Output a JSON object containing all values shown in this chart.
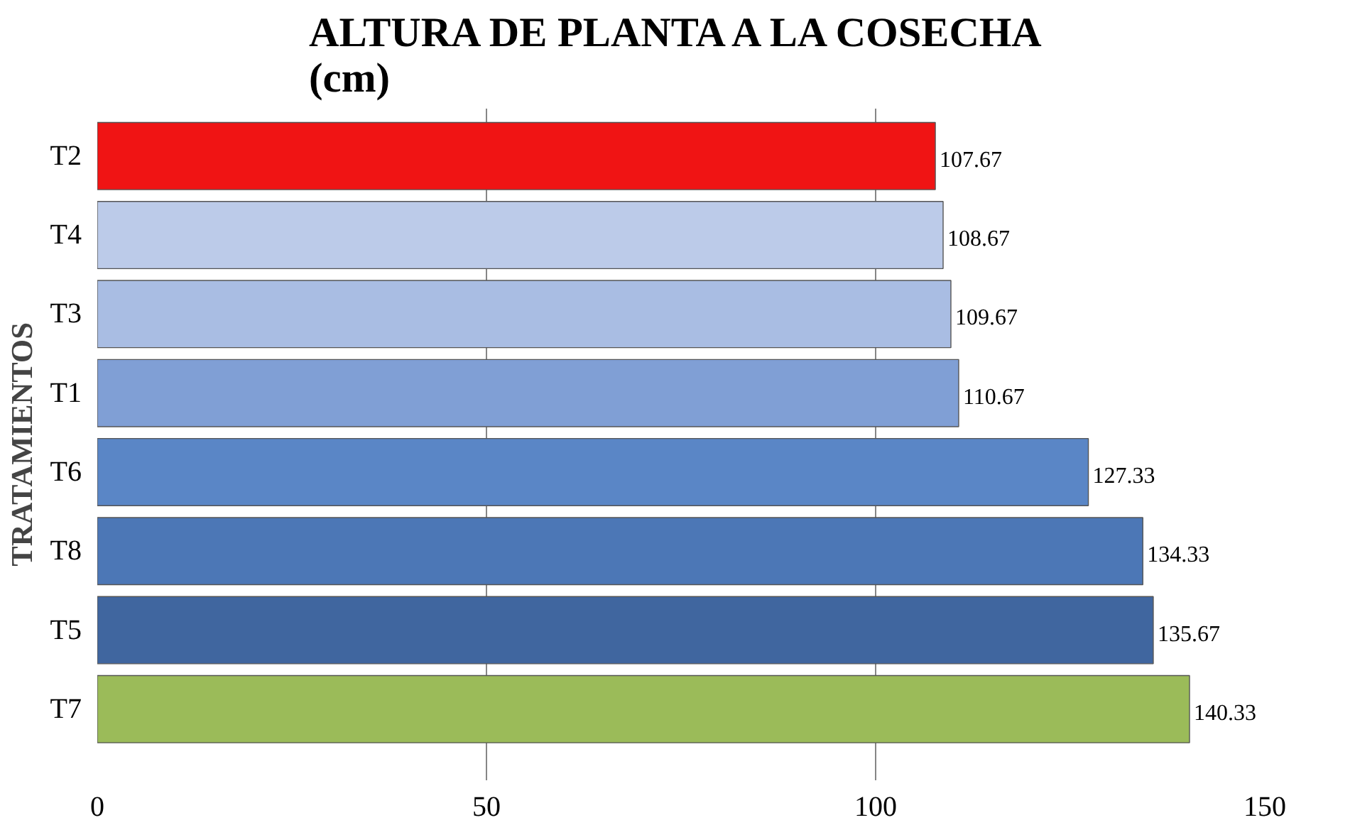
{
  "chart_data": {
    "type": "bar",
    "orientation": "horizontal",
    "title": "ALTURA DE PLANTA A LA COSECHA\n(cm)",
    "ylabel": "TRATAMIENTOS",
    "categories": [
      "T2",
      "T4",
      "T3",
      "T1",
      "T6",
      "T8",
      "T5",
      "T7"
    ],
    "values": [
      107.67,
      108.67,
      109.67,
      110.67,
      127.33,
      134.33,
      135.67,
      140.33
    ],
    "colors": [
      "#f01414",
      "#bccbe9",
      "#a9bde3",
      "#809fd5",
      "#5a86c6",
      "#4c77b6",
      "#40669f",
      "#9bbb59"
    ],
    "xlim": [
      0,
      150
    ],
    "xticks": [
      0,
      50,
      100,
      150
    ],
    "grid": "x",
    "data_labels": true
  }
}
